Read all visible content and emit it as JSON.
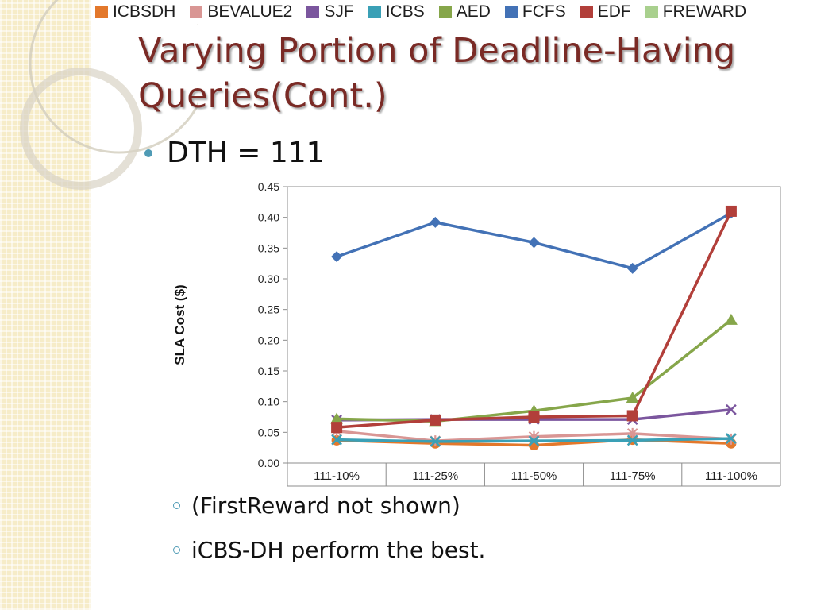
{
  "legend": [
    {
      "name": "ICBSDH",
      "color": "#e3782b"
    },
    {
      "name": "BEVALUE2",
      "color": "#d99694"
    },
    {
      "name": "SJF",
      "color": "#7b569e"
    },
    {
      "name": "ICBS",
      "color": "#3aa0b6"
    },
    {
      "name": "AED",
      "color": "#86a64a"
    },
    {
      "name": "FCFS",
      "color": "#4372b6"
    },
    {
      "name": "EDF",
      "color": "#b23f3a"
    },
    {
      "name": "FREWARD",
      "color": "#a9d08e"
    }
  ],
  "slide": {
    "title": "Varying Portion of Deadline-Having Queries(Cont.)",
    "bullet": "DTH = 111",
    "sub1": "(FirstReward not shown)",
    "sub2": "iCBS-DH perform the best."
  },
  "chart_data": {
    "type": "line",
    "title": "",
    "xlabel": "",
    "ylabel": "SLA Cost ($)",
    "categories": [
      "111-10%",
      "111-25%",
      "111-50%",
      "111-75%",
      "111-100%"
    ],
    "ylim": [
      0,
      0.45
    ],
    "yticks": [
      "0.00",
      "0.05",
      "0.10",
      "0.15",
      "0.20",
      "0.25",
      "0.30",
      "0.35",
      "0.40",
      "0.45"
    ],
    "grid": false,
    "series": [
      {
        "name": "ICBSDH",
        "marker": "circle",
        "color": "#e3782b",
        "values": [
          0.037,
          0.032,
          0.029,
          0.038,
          0.032
        ]
      },
      {
        "name": "BEVALUE2",
        "marker": "cross",
        "color": "#d99694",
        "values": [
          0.052,
          0.036,
          0.043,
          0.048,
          0.039
        ]
      },
      {
        "name": "SJF",
        "marker": "x",
        "color": "#7b569e",
        "values": [
          0.07,
          0.071,
          0.071,
          0.071,
          0.087
        ]
      },
      {
        "name": "ICBS",
        "marker": "x",
        "color": "#3aa0b6",
        "values": [
          0.038,
          0.035,
          0.036,
          0.037,
          0.04
        ]
      },
      {
        "name": "AED",
        "marker": "triangle",
        "color": "#86a64a",
        "values": [
          0.072,
          0.068,
          0.085,
          0.106,
          0.233
        ]
      },
      {
        "name": "FCFS",
        "marker": "diamond",
        "color": "#4372b6",
        "values": [
          0.336,
          0.392,
          0.359,
          0.317,
          0.407
        ]
      },
      {
        "name": "EDF",
        "marker": "square",
        "color": "#b23f3a",
        "values": [
          0.058,
          0.07,
          0.075,
          0.077,
          0.41
        ]
      }
    ]
  }
}
